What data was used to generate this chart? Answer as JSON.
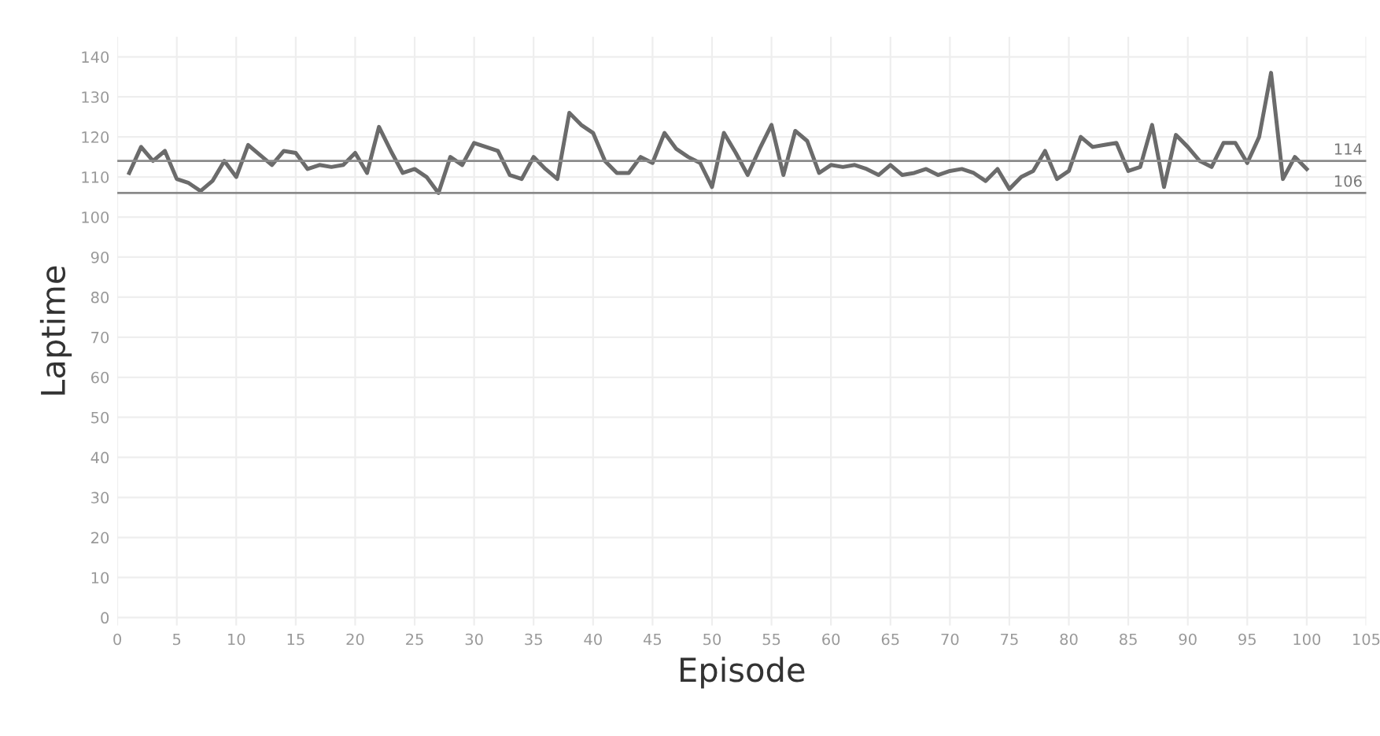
{
  "chart_data": {
    "type": "line",
    "xlabel": "Episode",
    "ylabel": "Laptime",
    "x": [
      1,
      2,
      3,
      4,
      5,
      6,
      7,
      8,
      9,
      10,
      11,
      12,
      13,
      14,
      15,
      16,
      17,
      18,
      19,
      20,
      21,
      22,
      23,
      24,
      25,
      26,
      27,
      28,
      29,
      30,
      31,
      32,
      33,
      34,
      35,
      36,
      37,
      38,
      39,
      40,
      41,
      42,
      43,
      44,
      45,
      46,
      47,
      48,
      49,
      50,
      51,
      52,
      53,
      54,
      55,
      56,
      57,
      58,
      59,
      60,
      61,
      62,
      63,
      64,
      65,
      66,
      67,
      68,
      69,
      70,
      71,
      72,
      73,
      74,
      75,
      76,
      77,
      78,
      79,
      80,
      81,
      82,
      83,
      84,
      85,
      86,
      87,
      88,
      89,
      90,
      91,
      92,
      93,
      94,
      95,
      96,
      97,
      98,
      99,
      100
    ],
    "series": [
      {
        "color": "#6b6b6b",
        "values": [
          111,
          117.5,
          114,
          116.5,
          109.5,
          108.5,
          106.5,
          109,
          114,
          110,
          118,
          115.5,
          113,
          116.5,
          116,
          112,
          113,
          112.5,
          113,
          116,
          111,
          122.5,
          116.5,
          111,
          112,
          110,
          106,
          115,
          113,
          118.5,
          117.5,
          116.5,
          110.5,
          109.5,
          115,
          112,
          109.5,
          126,
          123,
          121,
          114,
          111,
          111,
          115,
          113.5,
          121,
          117,
          115,
          113.5,
          107.5,
          121,
          116,
          110.5,
          117,
          123,
          110.5,
          121.5,
          119,
          111,
          113,
          112.5,
          113,
          112,
          110.5,
          113,
          110.5,
          111,
          112,
          110.5,
          111.5,
          112,
          111,
          109,
          112,
          107,
          110,
          111.5,
          116.5,
          109.5,
          111.5,
          120,
          117.5,
          118,
          118.5,
          111.5,
          112.5,
          123,
          107.5,
          120.5,
          117.5,
          114,
          112.5,
          118.5,
          118.5,
          113.5,
          120,
          136,
          109.5,
          115,
          112
        ]
      }
    ],
    "xlim": [
      0,
      105
    ],
    "xticks": [
      0,
      5,
      10,
      15,
      20,
      25,
      30,
      35,
      40,
      45,
      50,
      55,
      60,
      65,
      70,
      75,
      80,
      85,
      90,
      95,
      100,
      105
    ],
    "ylim": [
      -2,
      145
    ],
    "yticks": [
      0,
      10,
      20,
      30,
      40,
      50,
      60,
      70,
      80,
      90,
      100,
      110,
      120,
      130,
      140
    ],
    "grid": true,
    "marker": "none",
    "line_style": "solid",
    "ref_lines": [
      {
        "axis": "y",
        "value": 114,
        "label": "114",
        "color": "#8a8a8a"
      },
      {
        "axis": "y",
        "value": 106,
        "label": "106",
        "color": "#8a8a8a"
      }
    ]
  }
}
